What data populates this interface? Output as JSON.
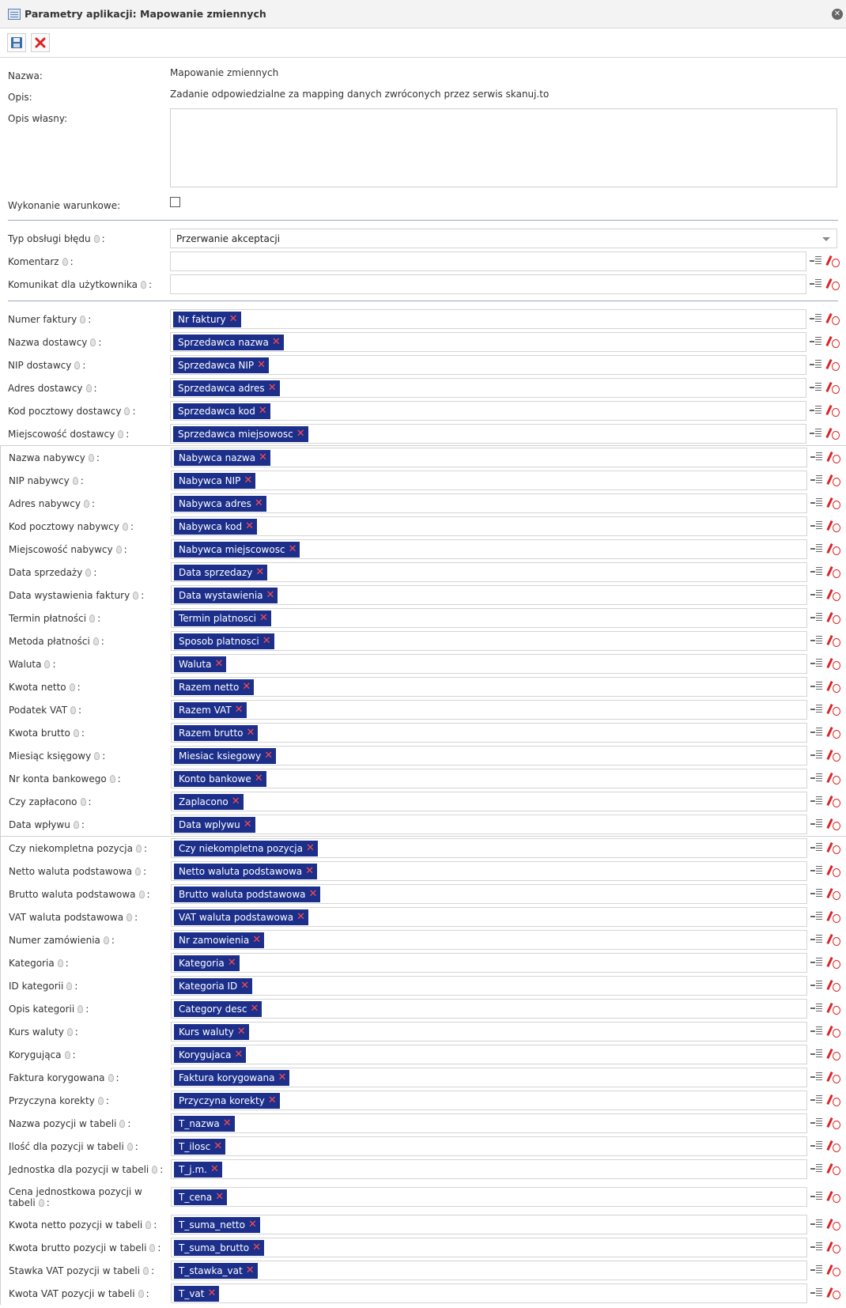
{
  "window": {
    "title": "Parametry aplikacji: Mapowanie zmiennych"
  },
  "static": {
    "name_label": "Nazwa:",
    "name_value": "Mapowanie zmiennych",
    "desc_label": "Opis:",
    "desc_value": "Zadanie odpowiedzialne za mapping danych zwróconych przez serwis skanuj.to",
    "own_desc_label": "Opis własny:",
    "conditional_label": "Wykonanie warunkowe:"
  },
  "settings": {
    "error_type_label": "Typ obsługi błędu",
    "error_type_value": "Przerwanie akceptacji",
    "comment_label": "Komentarz",
    "user_message_label": "Komunikat dla użytkownika"
  },
  "group1": [
    {
      "label": "Numer faktury",
      "tag": "Nr faktury"
    },
    {
      "label": "Nazwa dostawcy",
      "tag": "Sprzedawca nazwa"
    },
    {
      "label": "NIP dostawcy",
      "tag": "Sprzedawca NIP"
    },
    {
      "label": "Adres dostawcy",
      "tag": "Sprzedawca adres"
    },
    {
      "label": "Kod pocztowy dostawcy",
      "tag": "Sprzedawca kod"
    },
    {
      "label": "Miejscowość dostawcy",
      "tag": "Sprzedawca miejsowosc"
    }
  ],
  "group2": [
    {
      "label": "Nazwa nabywcy",
      "tag": "Nabywca nazwa"
    },
    {
      "label": "NIP nabywcy",
      "tag": "Nabywca NIP"
    },
    {
      "label": "Adres nabywcy",
      "tag": "Nabywca adres"
    },
    {
      "label": "Kod pocztowy nabywcy",
      "tag": "Nabywca kod"
    },
    {
      "label": "Miejscowość nabywcy",
      "tag": "Nabywca miejscowosc"
    },
    {
      "label": "Data sprzedaży",
      "tag": "Data sprzedazy"
    },
    {
      "label": "Data wystawienia faktury",
      "tag": "Data wystawienia"
    },
    {
      "label": "Termin płatności",
      "tag": "Termin platnosci"
    },
    {
      "label": "Metoda płatności",
      "tag": "Sposob platnosci"
    },
    {
      "label": "Waluta",
      "tag": "Waluta"
    },
    {
      "label": "Kwota netto",
      "tag": "Razem netto"
    },
    {
      "label": "Podatek VAT",
      "tag": "Razem VAT"
    },
    {
      "label": "Kwota brutto",
      "tag": "Razem brutto"
    },
    {
      "label": "Miesiąc księgowy",
      "tag": "Miesiac ksiegowy"
    },
    {
      "label": "Nr konta bankowego",
      "tag": "Konto bankowe"
    },
    {
      "label": "Czy zapłacono",
      "tag": "Zaplacono"
    },
    {
      "label": "Data wpływu",
      "tag": "Data wplywu"
    }
  ],
  "group3": [
    {
      "label": "Czy niekompletna pozycja",
      "tag": "Czy niekompletna pozycja"
    },
    {
      "label": "Netto waluta podstawowa",
      "tag": "Netto waluta podstawowa"
    },
    {
      "label": "Brutto waluta podstawowa",
      "tag": "Brutto waluta podstawowa"
    },
    {
      "label": "VAT waluta podstawowa",
      "tag": "VAT waluta podstawowa"
    },
    {
      "label": "Numer zamówienia",
      "tag": "Nr zamowienia"
    },
    {
      "label": "Kategoria",
      "tag": "Kategoria"
    },
    {
      "label": "ID kategorii",
      "tag": "Kategoria ID"
    },
    {
      "label": "Opis kategorii",
      "tag": "Category desc"
    },
    {
      "label": "Kurs waluty",
      "tag": "Kurs waluty"
    },
    {
      "label": "Korygująca",
      "tag": "Korygujaca"
    },
    {
      "label": "Faktura korygowana",
      "tag": "Faktura korygowana"
    },
    {
      "label": "Przyczyna korekty",
      "tag": "Przyczyna korekty"
    },
    {
      "label": "Nazwa pozycji w tabeli",
      "tag": "T_nazwa"
    },
    {
      "label": "Ilość dla pozycji w tabeli",
      "tag": "T_ilosc"
    },
    {
      "label": "Jednostka dla pozycji w tabeli",
      "tag": "T_j.m."
    },
    {
      "label": "Cena jednostkowa pozycji w tabeli",
      "tag": "T_cena",
      "wrap": true
    },
    {
      "label": "Kwota netto pozycji w tabeli",
      "tag": "T_suma_netto"
    },
    {
      "label": "Kwota brutto pozycji w tabeli",
      "tag": "T_suma_brutto"
    },
    {
      "label": "Stawka VAT pozycji w tabeli",
      "tag": "T_stawka_vat"
    },
    {
      "label": "Kwota VAT pozycji w tabeli",
      "tag": "T_vat"
    }
  ]
}
